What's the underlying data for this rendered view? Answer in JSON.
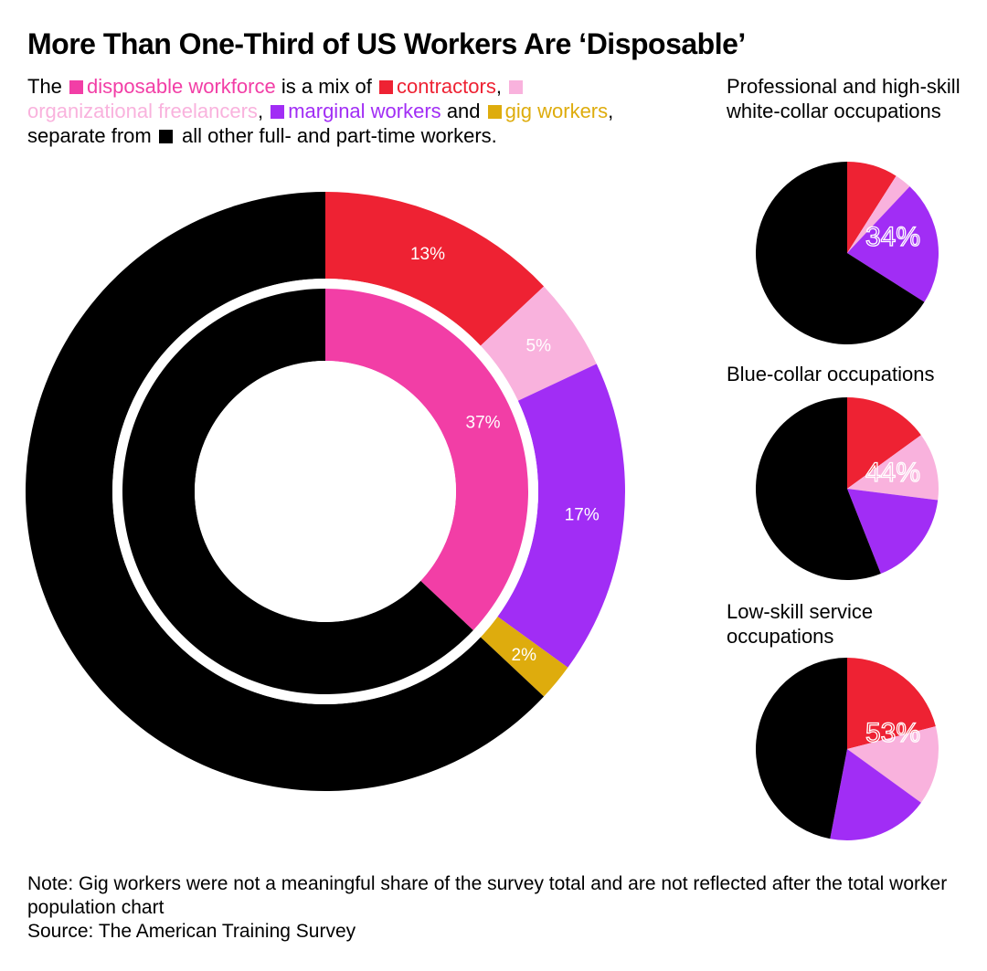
{
  "title": "More Than One-Third of US Workers Are ‘Disposable’",
  "legend": {
    "t1": "The",
    "disposable": "disposable workforce",
    "t2": "is a mix of",
    "contractors": "contractors",
    "t3": ",",
    "freelancers": "organizational freelancers",
    "t4": ",",
    "marginal": "marginal workers",
    "t5": "and",
    "gig": "gig workers",
    "t6": ", separate from",
    "t7": "all other full- and part-time workers."
  },
  "colors": {
    "disposable": "#f23ea6",
    "contractors": "#ee2233",
    "freelancers": "#f9b2dd",
    "marginal": "#a12df5",
    "gig": "#deac0d",
    "other": "#000000"
  },
  "chart_data": [
    {
      "type": "pie",
      "segments": [
        {
          "key": "contractors",
          "value": 13,
          "label": "13%"
        },
        {
          "key": "freelancers",
          "value": 5,
          "label": "5%"
        },
        {
          "key": "marginal",
          "value": 17,
          "label": "17%"
        },
        {
          "key": "gig",
          "value": 2,
          "label": "2%"
        },
        {
          "key": "other",
          "value": 63,
          "label": ""
        }
      ],
      "inner_segments": [
        {
          "key": "disposable",
          "value": 37,
          "label": "37%"
        },
        {
          "key": "other",
          "value": 63,
          "label": ""
        }
      ]
    },
    {
      "type": "pie",
      "title": "Professional and high-skill white-collar occupations",
      "total_label": "34%",
      "segments": [
        {
          "key": "contractors",
          "value": 9
        },
        {
          "key": "freelancers",
          "value": 3
        },
        {
          "key": "marginal",
          "value": 22
        },
        {
          "key": "other",
          "value": 66
        }
      ]
    },
    {
      "type": "pie",
      "title": "Blue-collar occupations",
      "total_label": "44%",
      "segments": [
        {
          "key": "contractors",
          "value": 15
        },
        {
          "key": "freelancers",
          "value": 12
        },
        {
          "key": "marginal",
          "value": 17
        },
        {
          "key": "other",
          "value": 56
        }
      ]
    },
    {
      "type": "pie",
      "title": "Low-skill service occupations",
      "total_label": "53%",
      "segments": [
        {
          "key": "contractors",
          "value": 21
        },
        {
          "key": "freelancers",
          "value": 14
        },
        {
          "key": "marginal",
          "value": 18
        },
        {
          "key": "other",
          "value": 47
        }
      ]
    }
  ],
  "note": {
    "line1": "Note: Gig workers were not a meaningful share of the survey total and are not reflected after the total worker population chart",
    "source": "Source: The American Training Survey"
  }
}
